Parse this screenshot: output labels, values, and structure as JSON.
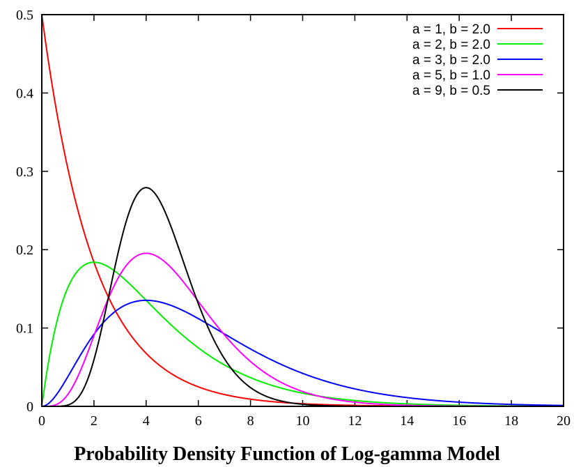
{
  "chart_data": {
    "type": "line",
    "title": "Probability Density Function of Log-gamma Model",
    "xlabel": "",
    "ylabel": "",
    "xlim": [
      0,
      20
    ],
    "ylim": [
      0,
      0.5
    ],
    "x_ticks": [
      0,
      2,
      4,
      6,
      8,
      10,
      12,
      14,
      16,
      18,
      20
    ],
    "x_tick_labels": [
      "0",
      "2",
      "4",
      "6",
      "8",
      "10",
      "12",
      "14",
      "16",
      "18",
      "20"
    ],
    "y_ticks": [
      0,
      0.1,
      0.2,
      0.3,
      0.4,
      0.5
    ],
    "y_tick_labels": [
      "0",
      "0.1",
      "0.2",
      "0.3",
      "0.4",
      "0.5"
    ],
    "grid": false,
    "legend_position": "top-right",
    "series": [
      {
        "name": "a = 1, b = 2.0",
        "a": 1,
        "b": 2.0,
        "color": "#ff0000"
      },
      {
        "name": "a = 2, b = 2.0",
        "a": 2,
        "b": 2.0,
        "color": "#00ee00"
      },
      {
        "name": "a = 3, b = 2.0",
        "a": 3,
        "b": 2.0,
        "color": "#0000ff"
      },
      {
        "name": "a = 5, b = 1.0",
        "a": 5,
        "b": 1.0,
        "color": "#ff00ff"
      },
      {
        "name": "a = 9, b = 0.5",
        "a": 9,
        "b": 0.5,
        "color": "#000000"
      }
    ]
  }
}
